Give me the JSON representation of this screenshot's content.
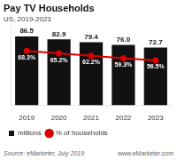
{
  "chart_data": {
    "type": "bar",
    "title": "Pay TV Households",
    "subtitle": "US, 2019-2023",
    "categories": [
      "2019",
      "2020",
      "2021",
      "2022",
      "2023"
    ],
    "series": [
      {
        "name": "millions",
        "color": "#111111",
        "values": [
          86.5,
          82.9,
          79.4,
          76.0,
          72.7
        ],
        "value_labels": [
          "86.5",
          "82.9",
          "79.4",
          "76.0",
          "72.7"
        ]
      },
      {
        "name": "% of households",
        "type": "line",
        "color": "#dd0000",
        "marker": "circle",
        "values": [
          68.3,
          65.2,
          62.2,
          59.3,
          56.5
        ],
        "value_labels": [
          "68.3%",
          "65.2%",
          "62.2%",
          "59.3%",
          "56.5%"
        ]
      }
    ],
    "ylim": [
      0,
      98
    ],
    "grid": false,
    "legend": "bottom",
    "data_labels": true,
    "tick_labels": "x",
    "annotations": [
      "Source: eMarketer, July 2019",
      "www.eMarketer.com"
    ]
  }
}
